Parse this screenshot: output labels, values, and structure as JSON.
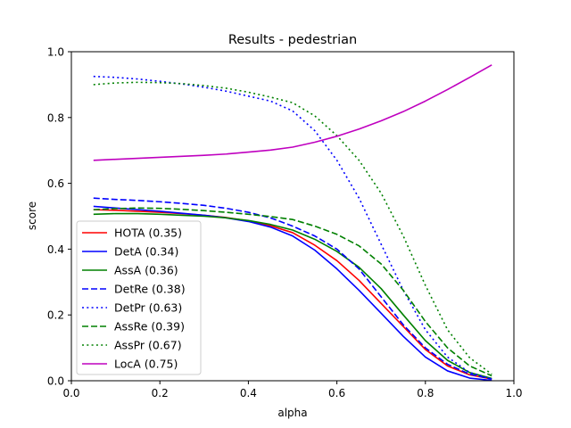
{
  "chart_data": {
    "type": "line",
    "title": "Results - pedestrian",
    "xlabel": "alpha",
    "ylabel": "score",
    "xlim": [
      0.0,
      1.0
    ],
    "ylim": [
      0.0,
      1.0
    ],
    "xticks": [
      "0.0",
      "0.2",
      "0.4",
      "0.6",
      "0.8",
      "1.0"
    ],
    "yticks": [
      "0.0",
      "0.2",
      "0.4",
      "0.6",
      "0.8",
      "1.0"
    ],
    "grid": false,
    "legend_position": "lower-left",
    "x": [
      0.05,
      0.1,
      0.15,
      0.2,
      0.25,
      0.3,
      0.35,
      0.4,
      0.45,
      0.5,
      0.55,
      0.6,
      0.65,
      0.7,
      0.75,
      0.8,
      0.85,
      0.9,
      0.95
    ],
    "series": [
      {
        "name": "HOTA (0.35)",
        "color": "#ff0000",
        "style": "solid",
        "values": [
          0.52,
          0.518,
          0.515,
          0.512,
          0.508,
          0.503,
          0.496,
          0.486,
          0.471,
          0.45,
          0.412,
          0.365,
          0.305,
          0.235,
          0.165,
          0.095,
          0.045,
          0.018,
          0.005
        ]
      },
      {
        "name": "DetA (0.34)",
        "color": "#0000ff",
        "style": "solid",
        "values": [
          0.53,
          0.525,
          0.52,
          0.515,
          0.509,
          0.503,
          0.495,
          0.484,
          0.467,
          0.44,
          0.397,
          0.34,
          0.275,
          0.205,
          0.135,
          0.072,
          0.03,
          0.008,
          0.001
        ]
      },
      {
        "name": "AssA (0.36)",
        "color": "#008000",
        "style": "solid",
        "values": [
          0.506,
          0.508,
          0.508,
          0.506,
          0.503,
          0.5,
          0.495,
          0.487,
          0.475,
          0.458,
          0.43,
          0.393,
          0.345,
          0.28,
          0.2,
          0.122,
          0.062,
          0.025,
          0.007
        ]
      },
      {
        "name": "DetRe (0.38)",
        "color": "#0000ff",
        "style": "dashed",
        "values": [
          0.555,
          0.551,
          0.548,
          0.544,
          0.539,
          0.533,
          0.524,
          0.512,
          0.495,
          0.47,
          0.44,
          0.4,
          0.34,
          0.255,
          0.17,
          0.1,
          0.05,
          0.02,
          0.005
        ]
      },
      {
        "name": "DetPr (0.63)",
        "color": "#0000ff",
        "style": "dotted",
        "values": [
          0.925,
          0.922,
          0.917,
          0.91,
          0.902,
          0.892,
          0.88,
          0.865,
          0.85,
          0.82,
          0.76,
          0.67,
          0.555,
          0.415,
          0.275,
          0.155,
          0.072,
          0.025,
          0.005
        ]
      },
      {
        "name": "AssRe (0.39)",
        "color": "#008000",
        "style": "dashed",
        "values": [
          0.52,
          0.523,
          0.525,
          0.524,
          0.521,
          0.517,
          0.512,
          0.506,
          0.499,
          0.49,
          0.47,
          0.445,
          0.41,
          0.355,
          0.275,
          0.18,
          0.1,
          0.045,
          0.015
        ]
      },
      {
        "name": "AssPr (0.67)",
        "color": "#008000",
        "style": "dotted",
        "values": [
          0.9,
          0.905,
          0.907,
          0.906,
          0.903,
          0.897,
          0.889,
          0.877,
          0.862,
          0.845,
          0.805,
          0.745,
          0.67,
          0.57,
          0.44,
          0.29,
          0.155,
          0.07,
          0.02
        ]
      },
      {
        "name": "LocA (0.75)",
        "color": "#bf00bf",
        "style": "solid",
        "values": [
          0.67,
          0.673,
          0.676,
          0.679,
          0.682,
          0.685,
          0.689,
          0.695,
          0.701,
          0.71,
          0.725,
          0.743,
          0.765,
          0.79,
          0.818,
          0.85,
          0.885,
          0.922,
          0.96
        ]
      }
    ]
  }
}
